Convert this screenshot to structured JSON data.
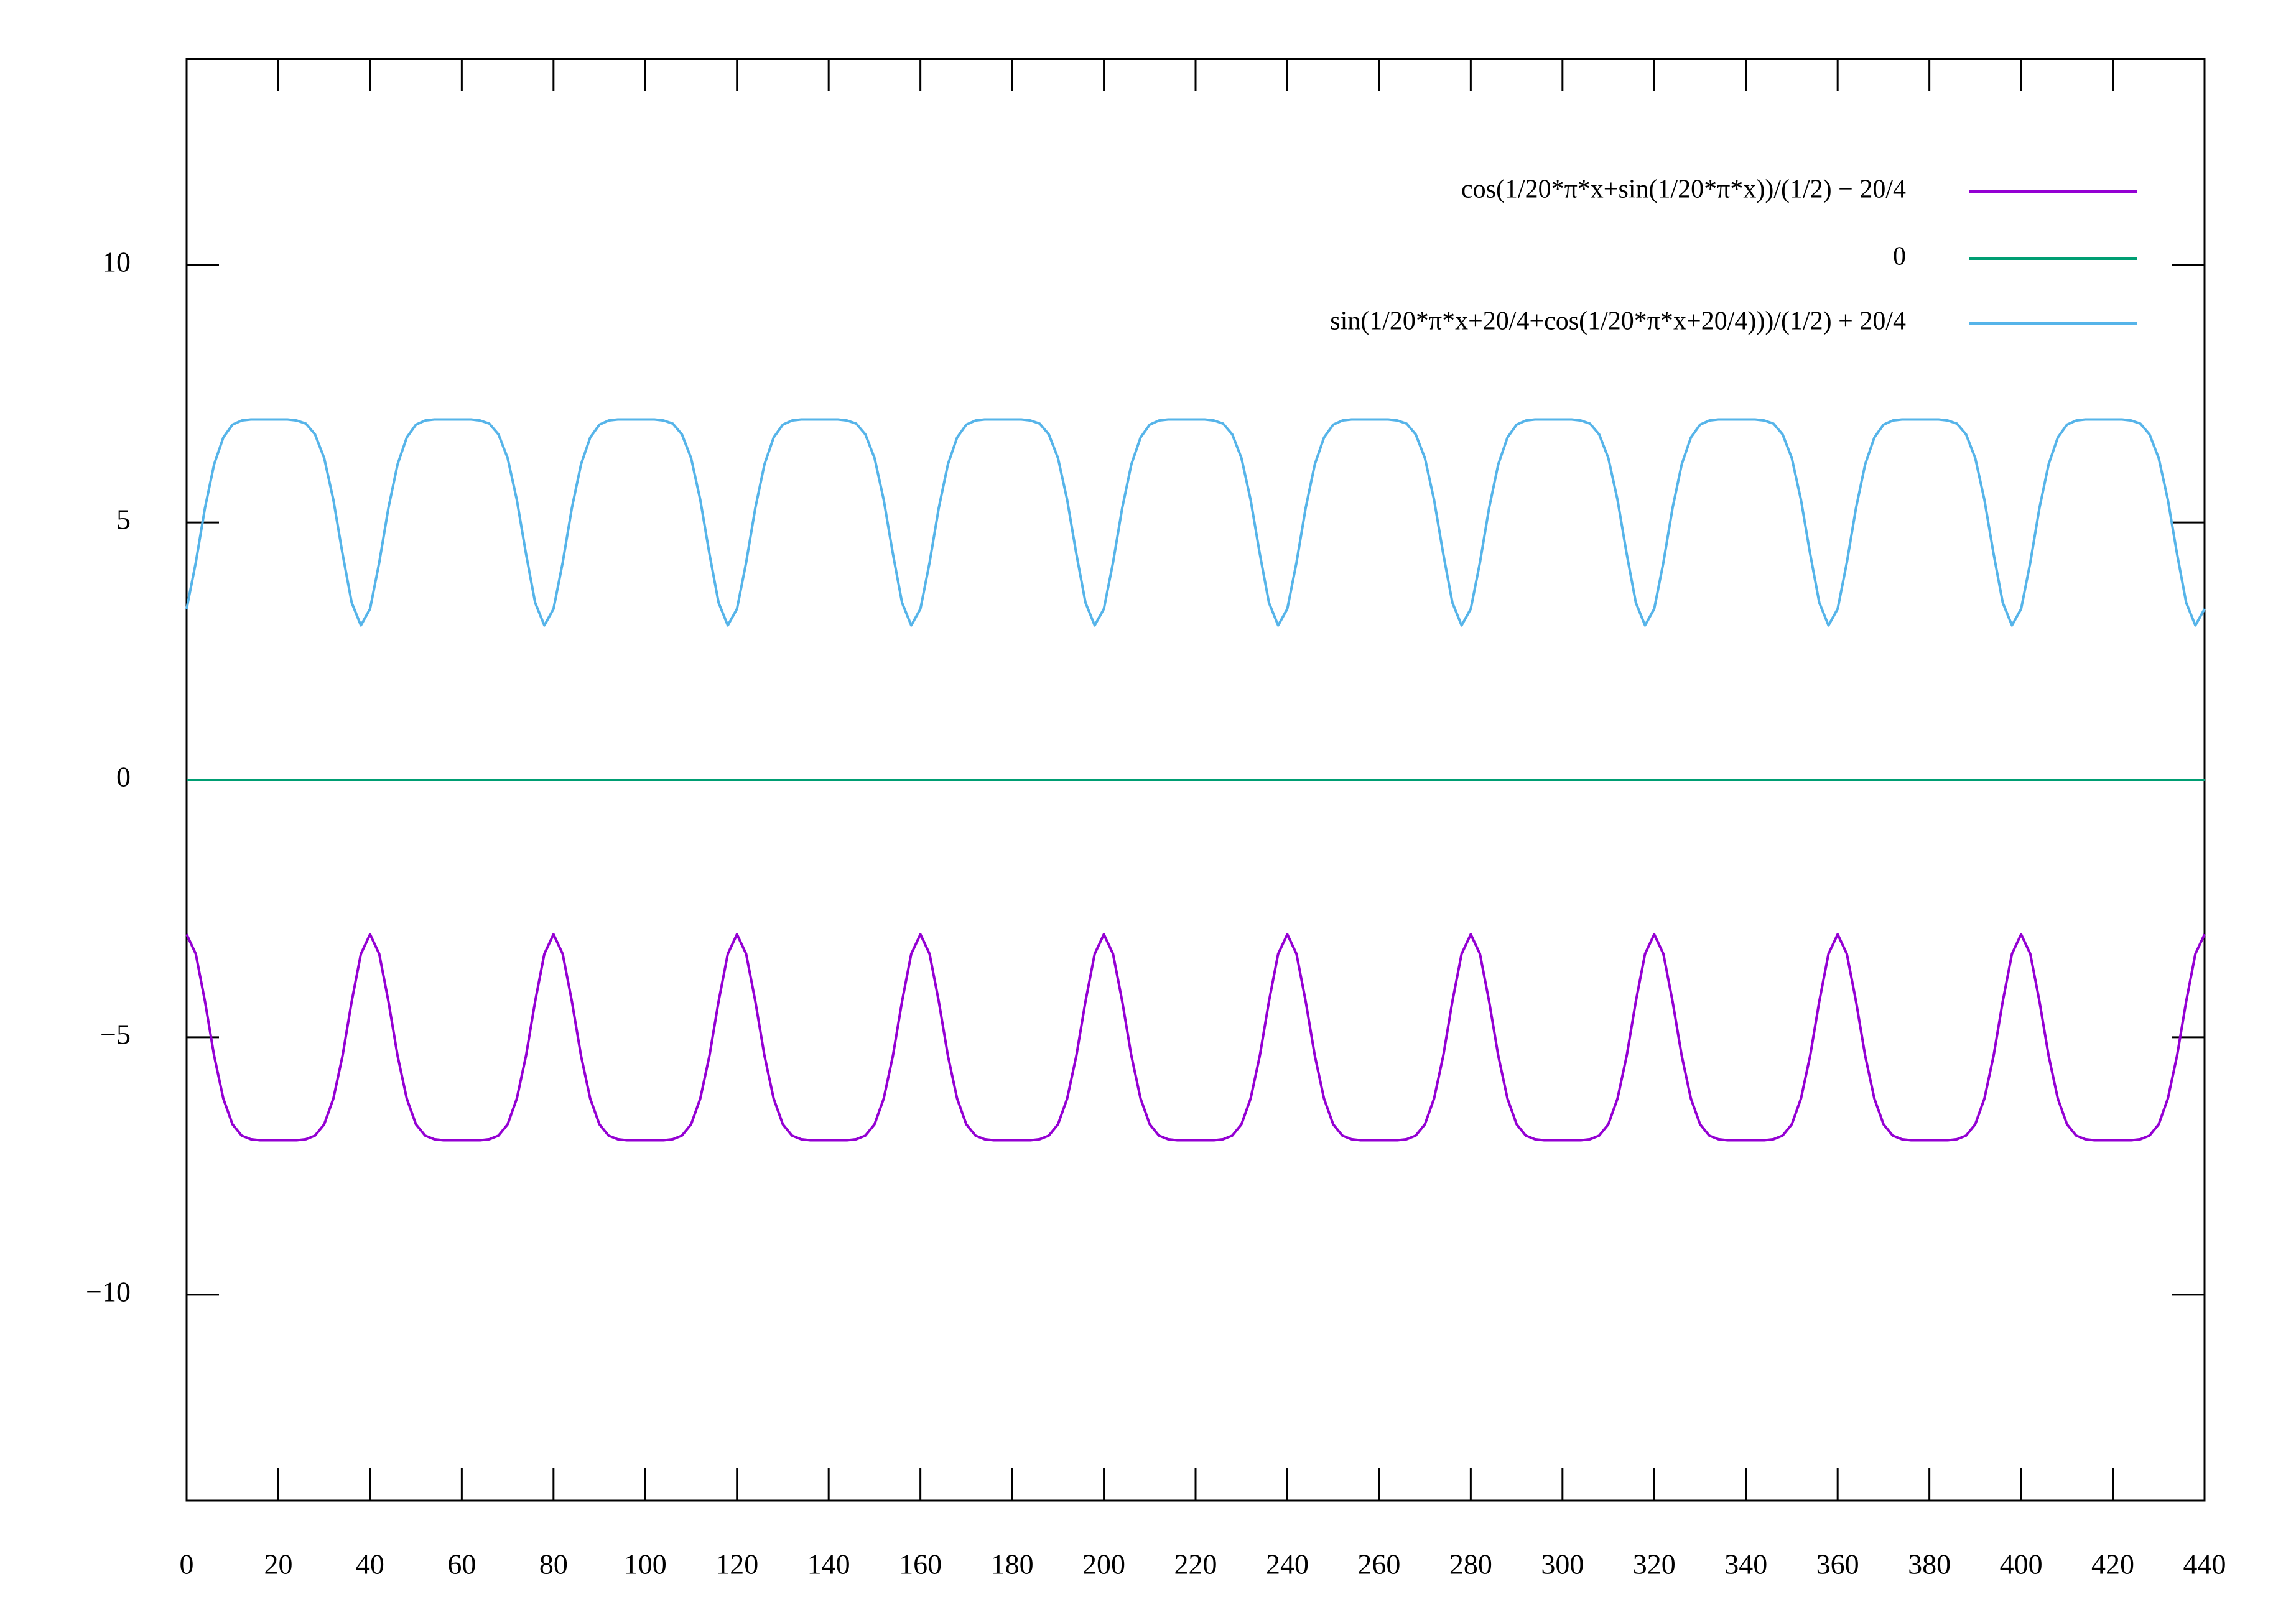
{
  "chart_data": {
    "type": "line",
    "x": [
      0,
      2,
      4,
      6,
      8,
      10,
      12,
      14,
      16,
      18,
      20,
      22,
      24,
      26,
      28,
      30,
      32,
      34,
      36,
      38,
      40,
      42,
      44,
      46,
      48,
      50,
      52,
      54,
      56,
      58,
      60,
      62,
      64,
      66,
      68,
      70,
      72,
      74,
      76,
      78,
      80,
      82,
      84,
      86,
      88,
      90,
      92,
      94,
      96,
      98,
      100,
      102,
      104,
      106,
      108,
      110,
      112,
      114,
      116,
      118,
      120,
      122,
      124,
      126,
      128,
      130,
      132,
      134,
      136,
      138,
      140,
      142,
      144,
      146,
      148,
      150,
      152,
      154,
      156,
      158,
      160,
      162,
      164,
      166,
      168,
      170,
      172,
      174,
      176,
      178,
      180,
      182,
      184,
      186,
      188,
      190,
      192,
      194,
      196,
      198,
      200,
      202,
      204,
      206,
      208,
      210,
      212,
      214,
      216,
      218,
      220,
      222,
      224,
      226,
      228,
      230,
      232,
      234,
      236,
      238,
      240,
      242,
      244,
      246,
      248,
      250,
      252,
      254,
      256,
      258,
      260,
      262,
      264,
      266,
      268,
      270,
      272,
      274,
      276,
      278,
      280,
      282,
      284,
      286,
      288,
      290,
      292,
      294,
      296,
      298,
      300,
      302,
      304,
      306,
      308,
      310,
      312,
      314,
      316,
      318,
      320,
      322,
      324,
      326,
      328,
      330,
      332,
      334,
      336,
      338,
      340,
      342,
      344,
      346,
      348,
      350,
      352,
      354,
      356,
      358,
      360,
      362,
      364,
      366,
      368,
      370,
      372,
      374,
      376,
      378,
      380,
      382,
      384,
      386,
      388,
      390,
      392,
      394,
      396,
      398,
      400,
      402,
      404,
      406,
      408,
      410,
      412,
      414,
      416,
      418,
      420,
      422,
      424,
      426,
      428,
      430,
      432,
      434,
      436,
      438,
      440
    ],
    "series": [
      {
        "name": "cos(1/20*π*x+sin(1/20*π*x))/(1/2) − 20/4",
        "color": "#9400d3",
        "values": [
          -3,
          -3.38,
          -4.3,
          -5.36,
          -6.19,
          -6.69,
          -6.91,
          -6.98,
          -7,
          -7,
          -7,
          -7,
          -7,
          -6.98,
          -6.91,
          -6.69,
          -6.19,
          -5.36,
          -4.3,
          -3.38,
          -3,
          -3.38,
          -4.3,
          -5.36,
          -6.19,
          -6.69,
          -6.91,
          -6.98,
          -7,
          -7,
          -7,
          -7,
          -7,
          -6.98,
          -6.91,
          -6.69,
          -6.19,
          -5.36,
          -4.3,
          -3.38,
          -3,
          -3.38,
          -4.3,
          -5.36,
          -6.19,
          -6.69,
          -6.91,
          -6.98,
          -7,
          -7,
          -7,
          -7,
          -7,
          -6.98,
          -6.91,
          -6.69,
          -6.19,
          -5.36,
          -4.3,
          -3.38,
          -3,
          -3.38,
          -4.3,
          -5.36,
          -6.19,
          -6.69,
          -6.91,
          -6.98,
          -7,
          -7,
          -7,
          -7,
          -7,
          -6.98,
          -6.91,
          -6.69,
          -6.19,
          -5.36,
          -4.3,
          -3.38,
          -3,
          -3.38,
          -4.3,
          -5.36,
          -6.19,
          -6.69,
          -6.91,
          -6.98,
          -7,
          -7,
          -7,
          -7,
          -7,
          -6.98,
          -6.91,
          -6.69,
          -6.19,
          -5.36,
          -4.3,
          -3.38,
          -3,
          -3.38,
          -4.3,
          -5.36,
          -6.19,
          -6.69,
          -6.91,
          -6.98,
          -7,
          -7,
          -7,
          -7,
          -7,
          -6.98,
          -6.91,
          -6.69,
          -6.19,
          -5.36,
          -4.3,
          -3.38,
          -3,
          -3.38,
          -4.3,
          -5.36,
          -6.19,
          -6.69,
          -6.91,
          -6.98,
          -7,
          -7,
          -7,
          -7,
          -7,
          -6.98,
          -6.91,
          -6.69,
          -6.19,
          -5.36,
          -4.3,
          -3.38,
          -3,
          -3.38,
          -4.3,
          -5.36,
          -6.19,
          -6.69,
          -6.91,
          -6.98,
          -7,
          -7,
          -7,
          -7,
          -7,
          -6.98,
          -6.91,
          -6.69,
          -6.19,
          -5.36,
          -4.3,
          -3.38,
          -3,
          -3.38,
          -4.3,
          -5.36,
          -6.19,
          -6.69,
          -6.91,
          -6.98,
          -7,
          -7,
          -7,
          -7,
          -7,
          -6.98,
          -6.91,
          -6.69,
          -6.19,
          -5.36,
          -4.3,
          -3.38,
          -3,
          -3.38,
          -4.3,
          -5.36,
          -6.19,
          -6.69,
          -6.91,
          -6.98,
          -7,
          -7,
          -7,
          -7,
          -7,
          -6.98,
          -6.91,
          -6.69,
          -6.19,
          -5.36,
          -4.3,
          -3.38,
          -3,
          -3.38,
          -4.3,
          -5.36,
          -6.19,
          -6.69,
          -6.91,
          -6.98,
          -7,
          -7,
          -7,
          -7,
          -7,
          -6.98,
          -6.91,
          -6.69,
          -6.19,
          -5.36,
          -4.3,
          -3.38,
          -3
        ]
      },
      {
        "name": "0",
        "color": "#009e73",
        "values": [
          0,
          0,
          0,
          0,
          0,
          0,
          0,
          0,
          0,
          0,
          0,
          0,
          0,
          0,
          0,
          0,
          0,
          0,
          0,
          0,
          0,
          0,
          0,
          0,
          0,
          0,
          0,
          0,
          0,
          0,
          0,
          0,
          0,
          0,
          0,
          0,
          0,
          0,
          0,
          0,
          0,
          0,
          0,
          0,
          0,
          0,
          0,
          0,
          0,
          0,
          0,
          0,
          0,
          0,
          0,
          0,
          0,
          0,
          0,
          0,
          0,
          0,
          0,
          0,
          0,
          0,
          0,
          0,
          0,
          0,
          0,
          0,
          0,
          0,
          0,
          0,
          0,
          0,
          0,
          0,
          0,
          0,
          0,
          0,
          0,
          0,
          0,
          0,
          0,
          0,
          0,
          0,
          0,
          0,
          0,
          0,
          0,
          0,
          0,
          0,
          0,
          0,
          0,
          0,
          0,
          0,
          0,
          0,
          0,
          0,
          0,
          0,
          0,
          0,
          0,
          0,
          0,
          0,
          0,
          0,
          0,
          0,
          0,
          0,
          0,
          0,
          0,
          0,
          0,
          0,
          0,
          0,
          0,
          0,
          0,
          0,
          0,
          0,
          0,
          0,
          0,
          0,
          0,
          0,
          0,
          0,
          0,
          0,
          0,
          0,
          0,
          0,
          0,
          0,
          0,
          0,
          0,
          0,
          0,
          0,
          0,
          0,
          0,
          0,
          0,
          0,
          0,
          0,
          0,
          0,
          0,
          0,
          0,
          0,
          0,
          0,
          0,
          0,
          0,
          0,
          0,
          0,
          0,
          0,
          0,
          0,
          0,
          0,
          0,
          0,
          0,
          0,
          0,
          0,
          0,
          0,
          0,
          0,
          0,
          0,
          0,
          0,
          0,
          0,
          0,
          0,
          0,
          0,
          0,
          0,
          0,
          0,
          0,
          0,
          0,
          0,
          0,
          0,
          0,
          0,
          0
        ]
      },
      {
        "name": "sin(1/20*π*x+20/4+cos(1/20*π*x+20/4)))/(1/2) + 20/4",
        "color": "#56b4e9",
        "values": [
          3.32,
          4.22,
          5.28,
          6.13,
          6.65,
          6.9,
          6.98,
          7,
          7,
          7,
          7,
          7,
          6.98,
          6.92,
          6.71,
          6.25,
          5.44,
          4.39,
          3.44,
          3,
          3.32,
          4.22,
          5.28,
          6.13,
          6.65,
          6.9,
          6.98,
          7,
          7,
          7,
          7,
          7,
          6.98,
          6.92,
          6.71,
          6.25,
          5.44,
          4.39,
          3.44,
          3,
          3.32,
          4.22,
          5.28,
          6.13,
          6.65,
          6.9,
          6.98,
          7,
          7,
          7,
          7,
          7,
          6.98,
          6.92,
          6.71,
          6.25,
          5.44,
          4.39,
          3.44,
          3,
          3.32,
          4.22,
          5.28,
          6.13,
          6.65,
          6.9,
          6.98,
          7,
          7,
          7,
          7,
          7,
          6.98,
          6.92,
          6.71,
          6.25,
          5.44,
          4.39,
          3.44,
          3,
          3.32,
          4.22,
          5.28,
          6.13,
          6.65,
          6.9,
          6.98,
          7,
          7,
          7,
          7,
          7,
          6.98,
          6.92,
          6.71,
          6.25,
          5.44,
          4.39,
          3.44,
          3,
          3.32,
          4.22,
          5.28,
          6.13,
          6.65,
          6.9,
          6.98,
          7,
          7,
          7,
          7,
          7,
          6.98,
          6.92,
          6.71,
          6.25,
          5.44,
          4.39,
          3.44,
          3,
          3.32,
          4.22,
          5.28,
          6.13,
          6.65,
          6.9,
          6.98,
          7,
          7,
          7,
          7,
          7,
          6.98,
          6.92,
          6.71,
          6.25,
          5.44,
          4.39,
          3.44,
          3,
          3.32,
          4.22,
          5.28,
          6.13,
          6.65,
          6.9,
          6.98,
          7,
          7,
          7,
          7,
          7,
          6.98,
          6.92,
          6.71,
          6.25,
          5.44,
          4.39,
          3.44,
          3,
          3.32,
          4.22,
          5.28,
          6.13,
          6.65,
          6.9,
          6.98,
          7,
          7,
          7,
          7,
          7,
          6.98,
          6.92,
          6.71,
          6.25,
          5.44,
          4.39,
          3.44,
          3,
          3.32,
          4.22,
          5.28,
          6.13,
          6.65,
          6.9,
          6.98,
          7,
          7,
          7,
          7,
          7,
          6.98,
          6.92,
          6.71,
          6.25,
          5.44,
          4.39,
          3.44,
          3,
          3.32,
          4.22,
          5.28,
          6.13,
          6.65,
          6.9,
          6.98,
          7,
          7,
          7,
          7,
          7,
          6.98,
          6.92,
          6.71,
          6.25,
          5.44,
          4.39,
          3.44,
          3,
          3.32
        ]
      }
    ],
    "xlim": [
      0,
      440
    ],
    "xticks": [
      0,
      20,
      40,
      60,
      80,
      100,
      120,
      140,
      160,
      180,
      200,
      220,
      240,
      260,
      280,
      300,
      320,
      340,
      360,
      380,
      400,
      420,
      440
    ],
    "ylim": [
      -14,
      14
    ],
    "yticks": [
      {
        "value": -10,
        "label": "−10"
      },
      {
        "value": -5,
        "label": "−5"
      },
      0,
      5,
      10
    ],
    "legend": "top-right"
  }
}
